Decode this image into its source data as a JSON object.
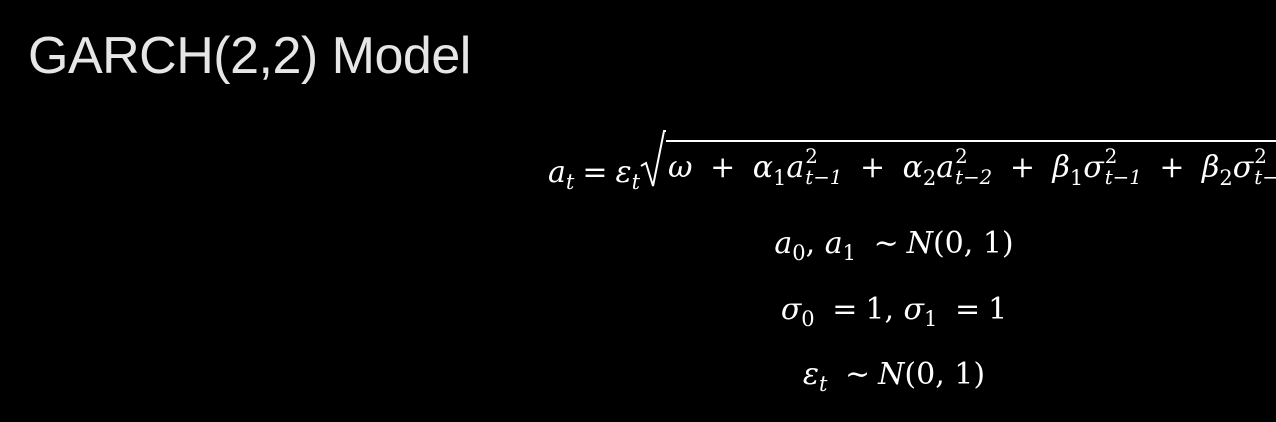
{
  "title": "GARCH(2,2) Model",
  "equations": {
    "variance": {
      "a": "a",
      "a_sub": "t",
      "eq": "=",
      "eps": "ε",
      "eps_sub": "t",
      "omega": "ω",
      "plus": "+",
      "alpha": "α",
      "one": "1",
      "two": "2",
      "sq": "2",
      "t_1": "t−1",
      "t_2": "t−2",
      "beta": "β",
      "sigma": "σ"
    },
    "init_a": {
      "a": "a",
      "zero": "0",
      "one": "1",
      "comma": ",",
      "tilde": "∼",
      "normal": "N",
      "args": "(0, 1)"
    },
    "init_sigma": {
      "sigma": "σ",
      "zero": "0",
      "one": "1",
      "eq": "=",
      "val": "1",
      "comma": ","
    },
    "eps_dist": {
      "eps": "ε",
      "sub": "t",
      "tilde": "∼",
      "normal": "N",
      "args": "(0, 1)"
    }
  }
}
